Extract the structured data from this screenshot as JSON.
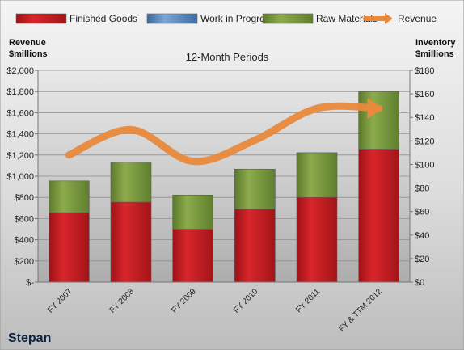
{
  "chart_data": {
    "type": "bar",
    "subtitle": "12-Month Periods",
    "company": "Stepan",
    "left_axis_title": [
      "Revenue",
      "$millions"
    ],
    "right_axis_title": [
      "Inventory",
      "$millions"
    ],
    "categories": [
      "FY 2007",
      "FY 2008",
      "FY 2009",
      "FY 2010",
      "FY 2011",
      "FY & TTM 2012"
    ],
    "stacked": true,
    "legend_position": "top",
    "grid": true,
    "left_axis": {
      "min": 0,
      "max": 2000,
      "step": 200,
      "tick_labels": [
        "$-",
        "$200",
        "$400",
        "$600",
        "$800",
        "$1,000",
        "$1,200",
        "$1,400",
        "$1,600",
        "$1,800",
        "$2,000"
      ]
    },
    "right_axis": {
      "min": 0,
      "max": 180,
      "step": 20,
      "tick_labels": [
        "$0",
        "$20",
        "$40",
        "$60",
        "$80",
        "$100",
        "$120",
        "$140",
        "$160",
        "$180"
      ]
    },
    "series": [
      {
        "name": "Finished Goods",
        "axis": "right",
        "color": "#c4161c",
        "values": [
          59,
          68,
          45,
          62,
          72,
          113
        ]
      },
      {
        "name": "Work in Progress",
        "axis": "right",
        "color": "#4f81bd",
        "values": [
          0,
          0,
          0,
          0,
          0,
          0
        ]
      },
      {
        "name": "Raw Materials",
        "axis": "right",
        "color": "#77933c",
        "values": [
          27,
          34,
          29,
          34,
          38,
          49
        ]
      },
      {
        "name": "Revenue",
        "axis": "left",
        "type": "line",
        "color": "#e9893c",
        "values": [
          1200,
          1440,
          1140,
          1340,
          1640,
          1640
        ]
      }
    ]
  }
}
